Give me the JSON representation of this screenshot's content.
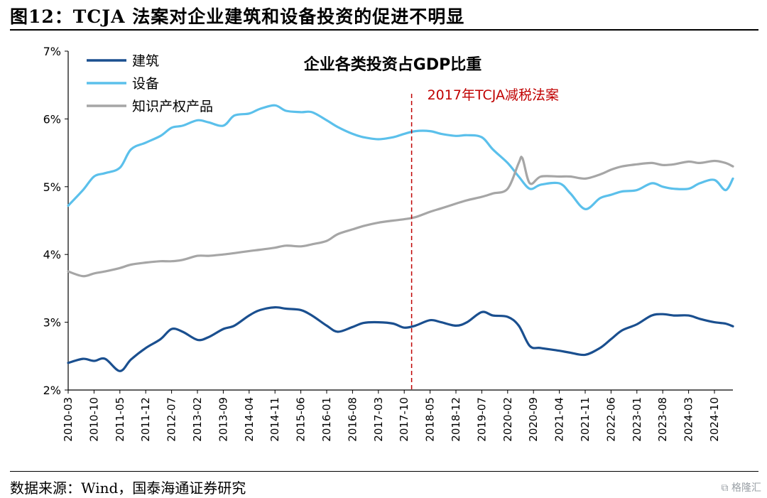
{
  "figure": {
    "title": "图12：TCJA 法案对企业建筑和设备投资的促进不明显",
    "source": "数据来源：Wind，国泰海通证券研究",
    "watermark": "格隆汇"
  },
  "chart_data": {
    "type": "line",
    "title": "企业各类投资占GDP比重",
    "xlabel": "",
    "ylabel": "",
    "ylim": [
      2,
      7
    ],
    "yticks": [
      2,
      3,
      4,
      5,
      6,
      7
    ],
    "ytick_labels": [
      "2%",
      "3%",
      "4%",
      "5%",
      "6%",
      "7%"
    ],
    "x_tick_labels": [
      "2010-03",
      "2010-10",
      "2011-05",
      "2011-12",
      "2012-07",
      "2013-02",
      "2013-09",
      "2014-04",
      "2014-11",
      "2015-06",
      "2016-01",
      "2016-08",
      "2017-03",
      "2017-10",
      "2018-05",
      "2018-12",
      "2019-07",
      "2020-02",
      "2020-09",
      "2021-04",
      "2021-11",
      "2022-06",
      "2023-01",
      "2023-08",
      "2024-03",
      "2024-10"
    ],
    "x_start": "2010-03",
    "x_end": "2025-03",
    "grid": false,
    "legend_position": "top-left",
    "annotation": {
      "label": "2017年TCJA减税法案",
      "x": "2017-12",
      "color": "#c00000"
    },
    "series": [
      {
        "name": "建筑",
        "color": "#1a4f8f",
        "points": [
          [
            "2010-03",
            2.4
          ],
          [
            "2010-07",
            2.46
          ],
          [
            "2010-10",
            2.43
          ],
          [
            "2011-01",
            2.46
          ],
          [
            "2011-05",
            2.28
          ],
          [
            "2011-08",
            2.45
          ],
          [
            "2011-12",
            2.62
          ],
          [
            "2012-04",
            2.75
          ],
          [
            "2012-07",
            2.9
          ],
          [
            "2012-10",
            2.86
          ],
          [
            "2013-02",
            2.74
          ],
          [
            "2013-05",
            2.78
          ],
          [
            "2013-09",
            2.9
          ],
          [
            "2013-12",
            2.95
          ],
          [
            "2014-04",
            3.1
          ],
          [
            "2014-07",
            3.18
          ],
          [
            "2014-11",
            3.22
          ],
          [
            "2015-02",
            3.2
          ],
          [
            "2015-06",
            3.18
          ],
          [
            "2015-09",
            3.1
          ],
          [
            "2016-01",
            2.95
          ],
          [
            "2016-04",
            2.86
          ],
          [
            "2016-08",
            2.93
          ],
          [
            "2016-11",
            2.99
          ],
          [
            "2017-03",
            3.0
          ],
          [
            "2017-07",
            2.98
          ],
          [
            "2017-10",
            2.92
          ],
          [
            "2018-01",
            2.95
          ],
          [
            "2018-05",
            3.03
          ],
          [
            "2018-08",
            3.0
          ],
          [
            "2018-12",
            2.95
          ],
          [
            "2019-03",
            3.0
          ],
          [
            "2019-07",
            3.15
          ],
          [
            "2019-10",
            3.1
          ],
          [
            "2020-02",
            3.08
          ],
          [
            "2020-05",
            2.95
          ],
          [
            "2020-08",
            2.65
          ],
          [
            "2020-11",
            2.62
          ],
          [
            "2021-04",
            2.58
          ],
          [
            "2021-07",
            2.55
          ],
          [
            "2021-11",
            2.52
          ],
          [
            "2022-03",
            2.62
          ],
          [
            "2022-06",
            2.75
          ],
          [
            "2022-09",
            2.88
          ],
          [
            "2023-01",
            2.97
          ],
          [
            "2023-05",
            3.1
          ],
          [
            "2023-08",
            3.12
          ],
          [
            "2023-11",
            3.1
          ],
          [
            "2024-03",
            3.1
          ],
          [
            "2024-06",
            3.05
          ],
          [
            "2024-10",
            3.0
          ],
          [
            "2025-01",
            2.98
          ],
          [
            "2025-03",
            2.94
          ]
        ]
      },
      {
        "name": "设备",
        "color": "#5bc0eb",
        "points": [
          [
            "2010-03",
            4.72
          ],
          [
            "2010-07",
            4.95
          ],
          [
            "2010-10",
            5.15
          ],
          [
            "2011-01",
            5.2
          ],
          [
            "2011-05",
            5.28
          ],
          [
            "2011-08",
            5.55
          ],
          [
            "2011-12",
            5.65
          ],
          [
            "2012-04",
            5.75
          ],
          [
            "2012-07",
            5.87
          ],
          [
            "2012-10",
            5.9
          ],
          [
            "2013-02",
            5.98
          ],
          [
            "2013-05",
            5.95
          ],
          [
            "2013-09",
            5.9
          ],
          [
            "2013-12",
            6.05
          ],
          [
            "2014-04",
            6.08
          ],
          [
            "2014-07",
            6.15
          ],
          [
            "2014-11",
            6.2
          ],
          [
            "2015-02",
            6.12
          ],
          [
            "2015-06",
            6.1
          ],
          [
            "2015-09",
            6.1
          ],
          [
            "2016-01",
            5.98
          ],
          [
            "2016-04",
            5.88
          ],
          [
            "2016-08",
            5.78
          ],
          [
            "2016-11",
            5.73
          ],
          [
            "2017-03",
            5.7
          ],
          [
            "2017-07",
            5.73
          ],
          [
            "2017-10",
            5.78
          ],
          [
            "2018-01",
            5.82
          ],
          [
            "2018-05",
            5.82
          ],
          [
            "2018-08",
            5.78
          ],
          [
            "2018-12",
            5.75
          ],
          [
            "2019-03",
            5.76
          ],
          [
            "2019-07",
            5.73
          ],
          [
            "2019-10",
            5.55
          ],
          [
            "2020-02",
            5.35
          ],
          [
            "2020-05",
            5.15
          ],
          [
            "2020-08",
            4.97
          ],
          [
            "2020-11",
            5.03
          ],
          [
            "2021-04",
            5.05
          ],
          [
            "2021-07",
            4.9
          ],
          [
            "2021-11",
            4.67
          ],
          [
            "2022-03",
            4.83
          ],
          [
            "2022-06",
            4.88
          ],
          [
            "2022-09",
            4.93
          ],
          [
            "2023-01",
            4.95
          ],
          [
            "2023-05",
            5.05
          ],
          [
            "2023-08",
            5.0
          ],
          [
            "2023-11",
            4.97
          ],
          [
            "2024-03",
            4.97
          ],
          [
            "2024-06",
            5.05
          ],
          [
            "2024-10",
            5.1
          ],
          [
            "2025-01",
            4.95
          ],
          [
            "2025-03",
            5.12
          ]
        ]
      },
      {
        "name": "知识产权产品",
        "color": "#a6a6a6",
        "points": [
          [
            "2010-03",
            3.75
          ],
          [
            "2010-07",
            3.68
          ],
          [
            "2010-10",
            3.72
          ],
          [
            "2011-01",
            3.75
          ],
          [
            "2011-05",
            3.8
          ],
          [
            "2011-08",
            3.85
          ],
          [
            "2011-12",
            3.88
          ],
          [
            "2012-04",
            3.9
          ],
          [
            "2012-07",
            3.9
          ],
          [
            "2012-10",
            3.92
          ],
          [
            "2013-02",
            3.98
          ],
          [
            "2013-05",
            3.98
          ],
          [
            "2013-09",
            4.0
          ],
          [
            "2013-12",
            4.02
          ],
          [
            "2014-04",
            4.05
          ],
          [
            "2014-07",
            4.07
          ],
          [
            "2014-11",
            4.1
          ],
          [
            "2015-02",
            4.13
          ],
          [
            "2015-06",
            4.12
          ],
          [
            "2015-09",
            4.15
          ],
          [
            "2016-01",
            4.2
          ],
          [
            "2016-04",
            4.3
          ],
          [
            "2016-08",
            4.37
          ],
          [
            "2016-11",
            4.42
          ],
          [
            "2017-03",
            4.47
          ],
          [
            "2017-07",
            4.5
          ],
          [
            "2017-10",
            4.52
          ],
          [
            "2018-01",
            4.55
          ],
          [
            "2018-05",
            4.63
          ],
          [
            "2018-08",
            4.68
          ],
          [
            "2018-12",
            4.75
          ],
          [
            "2019-03",
            4.8
          ],
          [
            "2019-07",
            4.85
          ],
          [
            "2019-10",
            4.9
          ],
          [
            "2020-02",
            4.97
          ],
          [
            "2020-05",
            5.35
          ],
          [
            "2020-06",
            5.42
          ],
          [
            "2020-08",
            5.05
          ],
          [
            "2020-11",
            5.15
          ],
          [
            "2021-04",
            5.15
          ],
          [
            "2021-07",
            5.15
          ],
          [
            "2021-11",
            5.12
          ],
          [
            "2022-03",
            5.18
          ],
          [
            "2022-06",
            5.25
          ],
          [
            "2022-09",
            5.3
          ],
          [
            "2023-01",
            5.33
          ],
          [
            "2023-05",
            5.35
          ],
          [
            "2023-08",
            5.32
          ],
          [
            "2023-11",
            5.33
          ],
          [
            "2024-03",
            5.37
          ],
          [
            "2024-06",
            5.35
          ],
          [
            "2024-10",
            5.38
          ],
          [
            "2025-01",
            5.35
          ],
          [
            "2025-03",
            5.3
          ]
        ]
      }
    ]
  }
}
